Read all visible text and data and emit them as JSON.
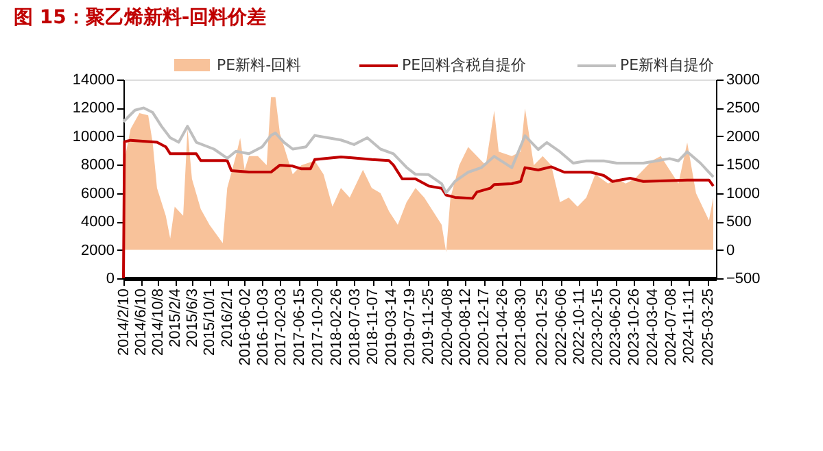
{
  "chart_data": {
    "type": "line",
    "title": "图 15：聚乙烯新料-回料价差",
    "legend": "top",
    "grid": false,
    "xlim": [
      "2014-02-10",
      "2025-05-20"
    ],
    "xticks": [
      {
        "value": "2014-02-10",
        "label": "2014/2/10"
      },
      {
        "value": "2014-06-10",
        "label": "2014/6/10"
      },
      {
        "value": "2014-10-08",
        "label": "2014/10/8"
      },
      {
        "value": "2015-02-04",
        "label": "2015/2/4"
      },
      {
        "value": "2015-06-03",
        "label": "2015/6/3"
      },
      {
        "value": "2015-10-01",
        "label": "2015/10/1"
      },
      {
        "value": "2016-02-01",
        "label": "2016/2/1"
      },
      {
        "value": "2016-06-02",
        "label": "2016-06-02"
      },
      {
        "value": "2016-10-03",
        "label": "2016-10-03"
      },
      {
        "value": "2017-02-03",
        "label": "2017-02-03"
      },
      {
        "value": "2017-06-15",
        "label": "2017-06-15"
      },
      {
        "value": "2017-10-20",
        "label": "2017-10-20"
      },
      {
        "value": "2018-02-26",
        "label": "2018-02-26"
      },
      {
        "value": "2018-07-03",
        "label": "2018-07-03"
      },
      {
        "value": "2018-11-07",
        "label": "2018-11-07"
      },
      {
        "value": "2019-03-14",
        "label": "2019-03-14"
      },
      {
        "value": "2019-07-19",
        "label": "2019-07-19"
      },
      {
        "value": "2019-11-25",
        "label": "2019-11-25"
      },
      {
        "value": "2020-04-08",
        "label": "2020-04-08"
      },
      {
        "value": "2020-08-12",
        "label": "2020-08-12"
      },
      {
        "value": "2020-12-17",
        "label": "2020-12-17"
      },
      {
        "value": "2021-04-26",
        "label": "2021-04-26"
      },
      {
        "value": "2021-08-30",
        "label": "2021-08-30"
      },
      {
        "value": "2022-01-25",
        "label": "2022-01-25"
      },
      {
        "value": "2022-06-06",
        "label": "2022-06-06"
      },
      {
        "value": "2022-10-11",
        "label": "2022-10-11"
      },
      {
        "value": "2023-02-15",
        "label": "2023-02-15"
      },
      {
        "value": "2023-06-20",
        "label": "2023-06-20"
      },
      {
        "value": "2023-10-26",
        "label": "2023-10-26"
      },
      {
        "value": "2024-03-04",
        "label": "2024-03-04"
      },
      {
        "value": "2024-07-08",
        "label": "2024-07-08"
      },
      {
        "value": "2024-11-11",
        "label": "2024-11-11"
      },
      {
        "value": "2025-03-25",
        "label": "2025-03-25"
      }
    ],
    "ylim": [
      0,
      14000
    ],
    "yticks": [
      0,
      2000,
      4000,
      6000,
      8000,
      10000,
      12000,
      14000
    ],
    "y2lim": [
      -500,
      3000
    ],
    "y2ticks": [
      -500,
      0,
      500,
      1000,
      1500,
      2000,
      2500,
      3000
    ],
    "series": [
      {
        "name": "PE新料-回料",
        "type": "area",
        "axis": "y2",
        "color": "#f8c29a",
        "x": [
          "2014-02-10",
          "2014-04",
          "2014-06",
          "2014-08",
          "2014-09",
          "2014-10",
          "2014-12",
          "2015-01",
          "2015-02",
          "2015-04",
          "2015-05",
          "2015-06",
          "2015-08",
          "2015-10",
          "2016-01",
          "2016-02",
          "2016-04",
          "2016-05",
          "2016-06",
          "2016-07",
          "2016-09",
          "2016-11",
          "2016-12",
          "2017-01",
          "2017-02",
          "2017-04",
          "2017-05",
          "2017-07",
          "2017-10",
          "2017-12",
          "2018-02",
          "2018-04",
          "2018-06",
          "2018-09",
          "2018-11",
          "2019-01",
          "2019-03",
          "2019-05",
          "2019-07",
          "2019-09",
          "2019-11",
          "2020-01",
          "2020-03",
          "2020-04",
          "2020-05",
          "2020-07",
          "2020-09",
          "2020-11",
          "2021-01",
          "2021-03",
          "2021-04",
          "2021-07",
          "2021-09",
          "2021-10",
          "2021-12",
          "2022-02",
          "2022-04",
          "2022-06",
          "2022-08",
          "2022-10",
          "2022-12",
          "2023-02",
          "2023-05",
          "2023-07",
          "2023-09",
          "2023-11",
          "2024-01",
          "2024-03",
          "2024-05",
          "2024-07",
          "2024-09",
          "2024-11",
          "2025-01",
          "2025-04",
          "2025-05"
        ],
        "values": [
          1490,
          2130,
          2410,
          2370,
          1890,
          1090,
          600,
          200,
          760,
          600,
          2130,
          1250,
          720,
          440,
          120,
          1090,
          1650,
          1970,
          1410,
          1650,
          1650,
          1490,
          2690,
          2690,
          2050,
          1570,
          1330,
          1490,
          1570,
          1330,
          760,
          1090,
          920,
          1410,
          1090,
          1000,
          680,
          440,
          840,
          1090,
          920,
          680,
          440,
          -40,
          920,
          1490,
          1810,
          1650,
          1490,
          2450,
          1730,
          1650,
          1730,
          2490,
          1490,
          1650,
          1490,
          840,
          920,
          760,
          920,
          1330,
          1170,
          1250,
          1170,
          1250,
          1410,
          1570,
          1650,
          1410,
          1170,
          1890,
          1000,
          520,
          920
        ]
      },
      {
        "name": "PE回料含税自提价",
        "color": "#c00000",
        "x": [
          "2014-02-10",
          "2014-02-17",
          "2014-04",
          "2014-10",
          "2014-12",
          "2015-01",
          "2015-07",
          "2015-08",
          "2016-02",
          "2016-03",
          "2016-07",
          "2016-12",
          "2017-02",
          "2017-05",
          "2017-07",
          "2017-09",
          "2017-10",
          "2018-04",
          "2018-11",
          "2019-03",
          "2019-04",
          "2019-06",
          "2019-09",
          "2019-12",
          "2020-03",
          "2020-04",
          "2020-06",
          "2020-10",
          "2020-11",
          "2021-02",
          "2021-03",
          "2021-07",
          "2021-09",
          "2021-10",
          "2022-01",
          "2022-04",
          "2022-07",
          "2023-01",
          "2023-04",
          "2023-06",
          "2023-10",
          "2024-01",
          "2024-11",
          "2025-04",
          "2025-05"
        ],
        "values": [
          0,
          9620,
          9720,
          9580,
          9260,
          8770,
          8770,
          8290,
          8290,
          7580,
          7480,
          7480,
          7970,
          7900,
          7710,
          7710,
          8360,
          8550,
          8360,
          8290,
          7970,
          7000,
          7000,
          6500,
          6340,
          5860,
          5700,
          5630,
          6080,
          6340,
          6600,
          6660,
          6820,
          7790,
          7630,
          7850,
          7470,
          7470,
          7240,
          6820,
          7050,
          6820,
          6920,
          6920,
          6500
        ]
      },
      {
        "name": "PE新料自提价",
        "color": "#bfbfbf",
        "x": [
          "2014-02-10",
          "2014-05",
          "2014-07",
          "2014-09",
          "2014-11",
          "2015-01",
          "2015-03",
          "2015-05",
          "2015-07",
          "2015-11",
          "2016-02",
          "2016-04",
          "2016-07",
          "2016-10",
          "2016-12",
          "2017-01",
          "2017-03",
          "2017-05",
          "2017-08",
          "2017-10",
          "2018-01",
          "2018-04",
          "2018-07",
          "2018-10",
          "2019-01",
          "2019-04",
          "2019-07",
          "2019-09",
          "2019-12",
          "2020-03",
          "2020-04",
          "2020-06",
          "2020-09",
          "2020-12",
          "2021-03",
          "2021-07",
          "2021-10",
          "2022-01",
          "2022-03",
          "2022-06",
          "2022-09",
          "2022-12",
          "2023-04",
          "2023-07",
          "2023-10",
          "2024-01",
          "2024-04",
          "2024-07",
          "2024-09",
          "2024-11",
          "2025-02",
          "2025-04",
          "2025-05"
        ],
        "values": [
          11030,
          11840,
          12000,
          11680,
          10710,
          9900,
          9580,
          10710,
          9580,
          9100,
          8450,
          8940,
          8770,
          9260,
          10060,
          10230,
          9580,
          9100,
          9260,
          10060,
          9900,
          9740,
          9420,
          9900,
          9100,
          8770,
          7810,
          7320,
          7300,
          6660,
          6020,
          6820,
          7470,
          7790,
          8590,
          7790,
          10040,
          9070,
          9560,
          8910,
          8110,
          8270,
          8270,
          8110,
          8110,
          8110,
          8270,
          8430,
          8270,
          8910,
          8110,
          7470,
          7140
        ]
      }
    ]
  }
}
